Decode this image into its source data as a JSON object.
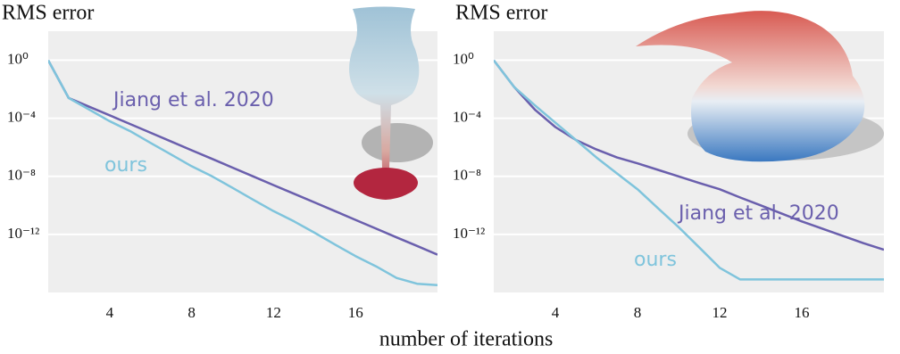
{
  "chart_data": [
    {
      "type": "line",
      "ylabel": "RMS error",
      "log_y": true,
      "grid": true,
      "xlim": [
        1,
        20
      ],
      "xticks": [
        4,
        8,
        12,
        16
      ],
      "ylim": [
        1e-16,
        100
      ],
      "yticks": [
        {
          "value": 1,
          "label": "10⁰"
        },
        {
          "value": 0.0001,
          "label": "10⁻⁴"
        },
        {
          "value": 1e-08,
          "label": "10⁻⁸"
        },
        {
          "value": 1e-12,
          "label": "10⁻¹²"
        }
      ],
      "x": [
        1,
        2,
        3,
        4,
        5,
        6,
        7,
        8,
        9,
        10,
        11,
        12,
        13,
        14,
        15,
        16,
        17,
        18,
        19,
        20
      ],
      "series": [
        {
          "name": "Jiang et al. 2020",
          "color": "#6a5fad",
          "values": [
            1,
            0.0025,
            0.00063,
            0.00016,
            4e-05,
            1e-05,
            2.5e-06,
            6.3e-07,
            1.6e-07,
            4e-08,
            1e-08,
            2.5e-09,
            6.3e-10,
            1.6e-10,
            4e-11,
            1e-11,
            2.5e-12,
            6.3e-13,
            1.6e-13,
            4e-14
          ]
        },
        {
          "name": "ours",
          "color": "#7fc4dc",
          "values": [
            1,
            0.0025,
            0.0004,
            6.3e-05,
            1.3e-05,
            2e-06,
            3.2e-07,
            5e-08,
            1e-08,
            1.6e-09,
            2.5e-10,
            4e-11,
            7.9e-12,
            1.3e-12,
            2e-13,
            3.2e-14,
            6.3e-15,
            1e-15,
            4e-16,
            3.2e-16
          ]
        }
      ]
    },
    {
      "type": "line",
      "ylabel": "RMS error",
      "log_y": true,
      "grid": true,
      "xlim": [
        1,
        20
      ],
      "xticks": [
        4,
        8,
        12,
        16
      ],
      "ylim": [
        1e-16,
        100
      ],
      "yticks": [
        {
          "value": 1,
          "label": "10⁰"
        },
        {
          "value": 0.0001,
          "label": "10⁻⁴"
        },
        {
          "value": 1e-08,
          "label": "10⁻⁸"
        },
        {
          "value": 1e-12,
          "label": "10⁻¹²"
        }
      ],
      "x": [
        1,
        2,
        3,
        4,
        5,
        6,
        7,
        8,
        9,
        10,
        11,
        12,
        13,
        14,
        15,
        16,
        17,
        18,
        19,
        20
      ],
      "series": [
        {
          "name": "Jiang et al. 2020",
          "color": "#6a5fad",
          "values": [
            1,
            0.014,
            0.0004,
            2.5e-05,
            3.2e-06,
            7.1e-07,
            2e-07,
            7.9e-08,
            2.8e-08,
            1e-08,
            3.5e-09,
            1.3e-09,
            3.5e-10,
            1e-10,
            2.8e-11,
            7.9e-12,
            2.5e-12,
            7.9e-13,
            2.5e-13,
            8.9e-14
          ]
        },
        {
          "name": "ours",
          "color": "#7fc4dc",
          "values": [
            1,
            0.014,
            0.00079,
            5e-05,
            3.2e-06,
            2e-07,
            1.6e-08,
            1.3e-09,
            6.3e-11,
            3.2e-12,
            1.3e-13,
            5e-15,
            7.9e-16,
            7.9e-16,
            7.9e-16,
            7.9e-16,
            7.9e-16,
            7.9e-16,
            7.9e-16,
            7.9e-16
          ]
        }
      ]
    }
  ],
  "xlabel": "number of iterations"
}
